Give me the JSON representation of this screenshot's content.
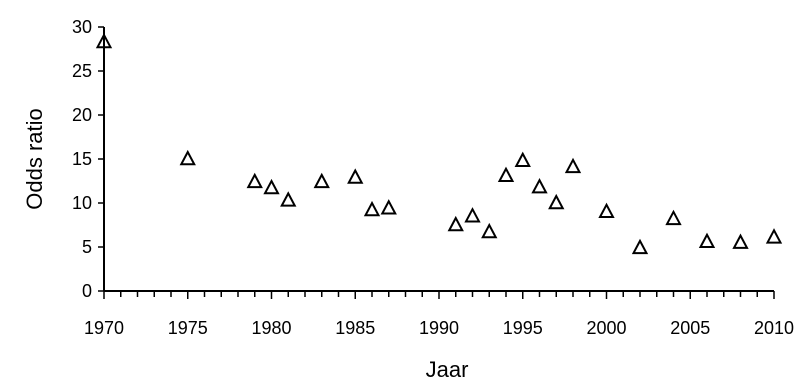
{
  "chart_data": {
    "type": "scatter",
    "title": "",
    "xlabel": "Jaar",
    "ylabel": "Odds ratio",
    "xlim": [
      1970,
      2010
    ],
    "ylim": [
      0,
      30
    ],
    "x_ticks": [
      "1970",
      "1975",
      "1980",
      "1985",
      "1990",
      "1995",
      "2000",
      "2005",
      "2010"
    ],
    "y_ticks": [
      "0",
      "5",
      "10",
      "15",
      "20",
      "25",
      "30"
    ],
    "grid": false,
    "legend": "none",
    "marker": "open-triangle",
    "color": "#000000",
    "series": [
      {
        "x": [
          1970,
          1975,
          1979,
          1980,
          1981,
          1983,
          1985,
          1986,
          1987,
          1991,
          1992,
          1993,
          1994,
          1995,
          1996,
          1997,
          1998,
          2000,
          2002,
          2004,
          2006,
          2008,
          2010
        ],
        "y": [
          28.3,
          15.0,
          12.4,
          11.7,
          10.3,
          12.4,
          12.9,
          9.2,
          9.4,
          7.5,
          8.5,
          6.7,
          13.1,
          14.8,
          11.8,
          10.0,
          14.1,
          9.0,
          4.9,
          8.2,
          5.6,
          5.5,
          6.1
        ]
      }
    ]
  }
}
